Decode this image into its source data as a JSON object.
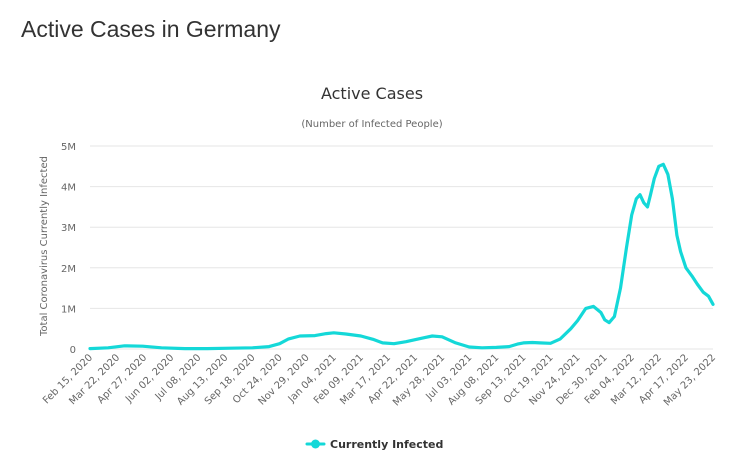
{
  "page": {
    "title": "Active Cases in Germany"
  },
  "chart_data": {
    "type": "line",
    "title": "Active Cases",
    "subtitle": "(Number of Infected People)",
    "xlabel": "",
    "ylabel": "Total Coronavirus Currently Infected",
    "ylim": [
      0,
      5000000
    ],
    "y_ticks": [
      0,
      1000000,
      2000000,
      3000000,
      4000000,
      5000000
    ],
    "y_tick_labels": [
      "0",
      "1M",
      "2M",
      "3M",
      "4M",
      "5M"
    ],
    "grid": true,
    "legend_position": "bottom-center",
    "x_tick_labels": [
      "Feb 15, 2020",
      "Mar 22, 2020",
      "Apr 27, 2020",
      "Jun 02, 2020",
      "Jul 08, 2020",
      "Aug 13, 2020",
      "Sep 18, 2020",
      "Oct 24, 2020",
      "Nov 29, 2020",
      "Jan 04, 2021",
      "Feb 09, 2021",
      "Mar 17, 2021",
      "Apr 22, 2021",
      "May 28, 2021",
      "Jul 03, 2021",
      "Aug 08, 2021",
      "Sep 13, 2021",
      "Oct 19, 2021",
      "Nov 24, 2021",
      "Dec 30, 2021",
      "Feb 04, 2022",
      "Mar 12, 2022",
      "Apr 17, 2022",
      "May 23, 2022"
    ],
    "series": [
      {
        "name": "Currently Infected",
        "color": "#14d8d8",
        "x": [
          "2020-02-15",
          "2020-03-10",
          "2020-04-01",
          "2020-04-25",
          "2020-05-20",
          "2020-06-20",
          "2020-07-20",
          "2020-08-20",
          "2020-09-18",
          "2020-10-10",
          "2020-10-24",
          "2020-11-05",
          "2020-11-20",
          "2020-12-10",
          "2020-12-25",
          "2021-01-04",
          "2021-01-20",
          "2021-02-09",
          "2021-02-25",
          "2021-03-10",
          "2021-03-25",
          "2021-04-10",
          "2021-04-22",
          "2021-05-05",
          "2021-05-15",
          "2021-05-28",
          "2021-06-15",
          "2021-07-03",
          "2021-07-20",
          "2021-08-08",
          "2021-08-25",
          "2021-09-05",
          "2021-09-13",
          "2021-09-25",
          "2021-10-05",
          "2021-10-19",
          "2021-11-01",
          "2021-11-15",
          "2021-11-24",
          "2021-12-05",
          "2021-12-15",
          "2021-12-25",
          "2021-12-30",
          "2022-01-05",
          "2022-01-12",
          "2022-01-20",
          "2022-01-28",
          "2022-02-04",
          "2022-02-10",
          "2022-02-15",
          "2022-02-20",
          "2022-02-25",
          "2022-03-01",
          "2022-03-06",
          "2022-03-12",
          "2022-03-18",
          "2022-03-24",
          "2022-03-30",
          "2022-04-05",
          "2022-04-10",
          "2022-04-17",
          "2022-04-25",
          "2022-05-02",
          "2022-05-10",
          "2022-05-17",
          "2022-05-23"
        ],
        "y": [
          10000,
          30000,
          80000,
          70000,
          30000,
          10000,
          10000,
          20000,
          30000,
          60000,
          130000,
          250000,
          320000,
          330000,
          380000,
          400000,
          370000,
          320000,
          240000,
          150000,
          130000,
          180000,
          230000,
          280000,
          320000,
          300000,
          150000,
          50000,
          30000,
          40000,
          60000,
          120000,
          150000,
          160000,
          150000,
          140000,
          250000,
          500000,
          700000,
          1000000,
          1050000,
          900000,
          720000,
          650000,
          800000,
          1500000,
          2500000,
          3300000,
          3700000,
          3800000,
          3600000,
          3500000,
          3800000,
          4200000,
          4500000,
          4550000,
          4300000,
          3700000,
          2800000,
          2400000,
          2000000,
          1800000,
          1600000,
          1400000,
          1300000,
          1100000
        ]
      }
    ]
  }
}
